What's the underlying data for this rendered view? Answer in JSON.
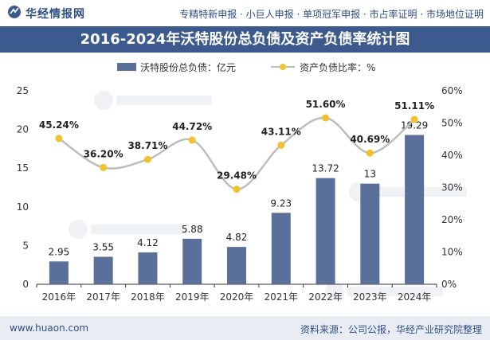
{
  "header": {
    "logo_text": "华经情报网",
    "services": "专精特新申报 · 小巨人申报 · 单项冠军申报 · 市占率证明 · 市场地位证明"
  },
  "footer": {
    "website": "www.huaon.com",
    "source": "资料来源：公司公报，华经产业研究院整理"
  },
  "chart_data": {
    "type": "bar",
    "title": "2016-2024年沃特股份总负债及资产负债率统计图",
    "categories": [
      "2016年",
      "2017年",
      "2018年",
      "2019年",
      "2020年",
      "2021年",
      "2022年",
      "2023年",
      "2024年"
    ],
    "series": [
      {
        "name": "沃特股份总负债：亿元",
        "type": "bar",
        "axis": "left",
        "color": "#5a6f99",
        "values": [
          2.95,
          3.55,
          4.12,
          5.88,
          4.82,
          9.23,
          13.72,
          13,
          19.29
        ],
        "labels": [
          "2.95",
          "3.55",
          "4.12",
          "5.88",
          "4.82",
          "9.23",
          "13.72",
          "13",
          "19.29"
        ]
      },
      {
        "name": "资产负债比率：%",
        "type": "line",
        "axis": "right",
        "color": "#f2c12e",
        "line_color": "#bdbdbd",
        "values": [
          45.24,
          36.2,
          38.71,
          44.72,
          29.48,
          43.11,
          51.6,
          40.69,
          51.11
        ],
        "labels": [
          "45.24%",
          "36.20%",
          "38.71%",
          "44.72%",
          "29.48%",
          "43.11%",
          "51.60%",
          "40.69%",
          "51.11%"
        ]
      }
    ],
    "y_left": {
      "min": 0,
      "max": 25,
      "ticks": [
        "0",
        "5",
        "10",
        "15",
        "20",
        "25"
      ]
    },
    "y_right": {
      "min": 0,
      "max": 60,
      "ticks": [
        "0%",
        "10%",
        "20%",
        "30%",
        "40%",
        "50%",
        "60%"
      ]
    },
    "legend_position": "top-center",
    "grid": false
  }
}
